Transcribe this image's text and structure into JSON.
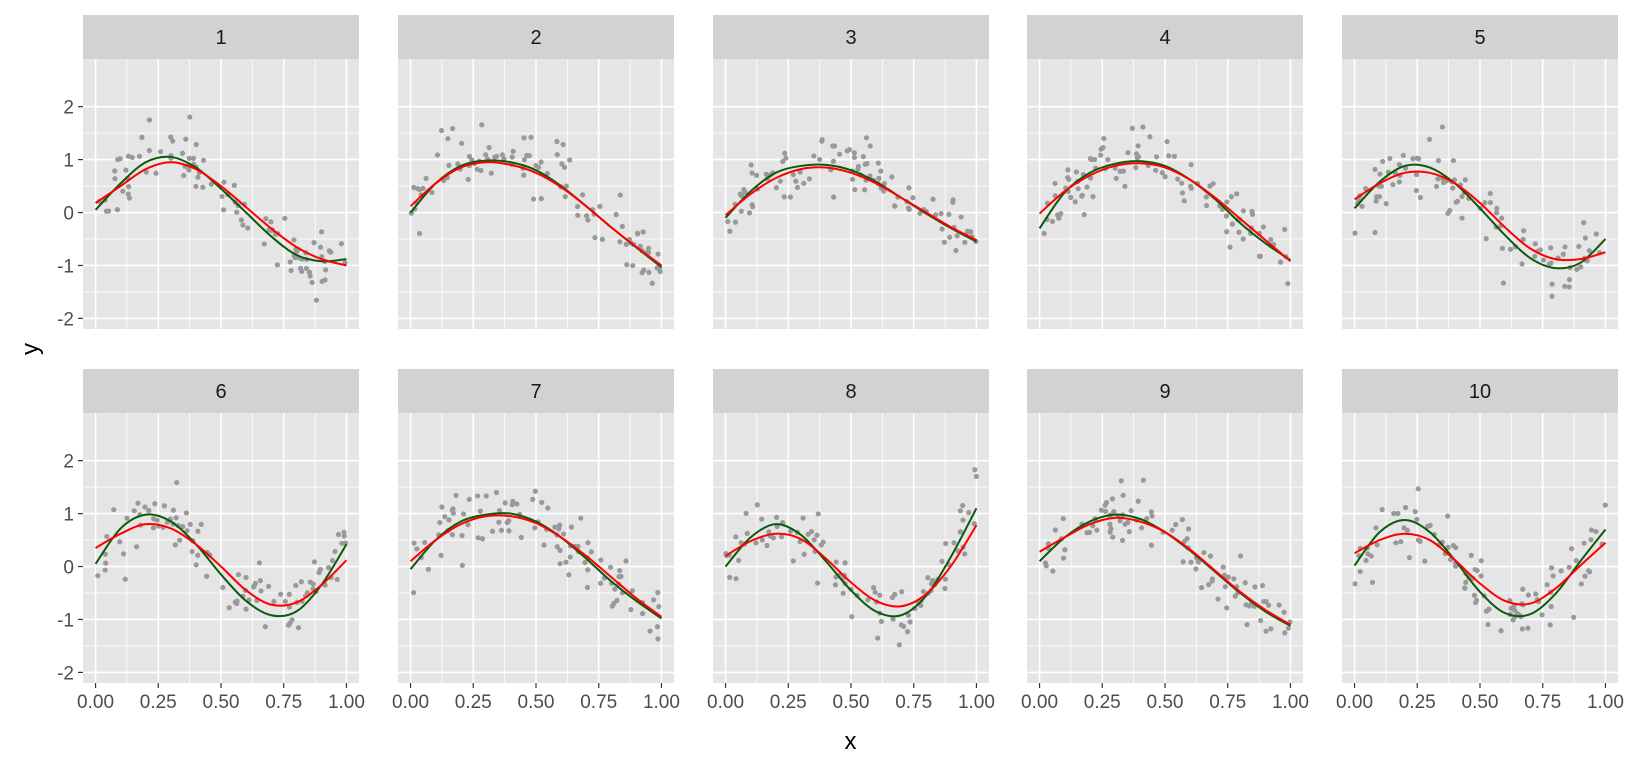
{
  "chart_data": {
    "type": "scatter",
    "layout": "facet-grid",
    "facet_rows": 2,
    "facet_cols": 5,
    "xlabel": "x",
    "ylabel": "y",
    "xlim": [
      -0.05,
      1.05
    ],
    "ylim": [
      -2.2,
      2.9
    ],
    "x_ticks": [
      0,
      0.25,
      0.5,
      0.75,
      1
    ],
    "x_tick_labels": [
      "0.00",
      "0.25",
      "0.50",
      "0.75",
      "1.00"
    ],
    "y_ticks": [
      -2,
      -1,
      0,
      1,
      2
    ],
    "y_tick_labels": [
      "-2",
      "-1",
      "0",
      "1",
      "2"
    ],
    "grid": true,
    "legend": "none",
    "colors": {
      "panel_background": "#e5e5e5",
      "strip_background": "#d2d2d2",
      "gridline": "#ffffff",
      "points": "#999999",
      "true_curve": "#0b5a0b",
      "fitted_curve": "#ff0000"
    },
    "n_points_per_panel": 100,
    "series": [
      {
        "role": "points",
        "color": "#999999"
      },
      {
        "role": "true_curve",
        "color": "#0b5a0b"
      },
      {
        "role": "fitted_curve",
        "color": "#ff0000"
      }
    ],
    "panels": [
      {
        "label": "1",
        "true_curve": [
          [
            0,
            0.05
          ],
          [
            0.1,
            0.55
          ],
          [
            0.2,
            0.95
          ],
          [
            0.3,
            1.05
          ],
          [
            0.4,
            0.85
          ],
          [
            0.5,
            0.45
          ],
          [
            0.6,
            0.0
          ],
          [
            0.7,
            -0.45
          ],
          [
            0.8,
            -0.8
          ],
          [
            0.9,
            -0.92
          ],
          [
            1,
            -0.88
          ]
        ],
        "fitted_curve": [
          [
            0,
            0.18
          ],
          [
            0.1,
            0.5
          ],
          [
            0.2,
            0.82
          ],
          [
            0.3,
            0.95
          ],
          [
            0.4,
            0.82
          ],
          [
            0.5,
            0.5
          ],
          [
            0.6,
            0.1
          ],
          [
            0.7,
            -0.3
          ],
          [
            0.8,
            -0.65
          ],
          [
            0.9,
            -0.88
          ],
          [
            1,
            -1.0
          ]
        ]
      },
      {
        "label": "2",
        "true_curve": [
          [
            0,
            0.0
          ],
          [
            0.1,
            0.55
          ],
          [
            0.2,
            0.88
          ],
          [
            0.3,
            0.98
          ],
          [
            0.4,
            0.95
          ],
          [
            0.5,
            0.8
          ],
          [
            0.6,
            0.5
          ],
          [
            0.7,
            0.12
          ],
          [
            0.8,
            -0.28
          ],
          [
            0.9,
            -0.66
          ],
          [
            1,
            -1.03
          ]
        ],
        "fitted_curve": [
          [
            0,
            0.12
          ],
          [
            0.1,
            0.55
          ],
          [
            0.2,
            0.85
          ],
          [
            0.3,
            0.95
          ],
          [
            0.4,
            0.9
          ],
          [
            0.5,
            0.75
          ],
          [
            0.6,
            0.48
          ],
          [
            0.7,
            0.12
          ],
          [
            0.8,
            -0.28
          ],
          [
            0.9,
            -0.65
          ],
          [
            1,
            -1.0
          ]
        ]
      },
      {
        "label": "3",
        "true_curve": [
          [
            0,
            -0.1
          ],
          [
            0.1,
            0.4
          ],
          [
            0.2,
            0.75
          ],
          [
            0.3,
            0.88
          ],
          [
            0.4,
            0.9
          ],
          [
            0.5,
            0.8
          ],
          [
            0.6,
            0.58
          ],
          [
            0.7,
            0.28
          ],
          [
            0.8,
            -0.02
          ],
          [
            0.9,
            -0.3
          ],
          [
            1,
            -0.55
          ]
        ],
        "fitted_curve": [
          [
            0,
            -0.05
          ],
          [
            0.1,
            0.35
          ],
          [
            0.2,
            0.65
          ],
          [
            0.3,
            0.82
          ],
          [
            0.4,
            0.85
          ],
          [
            0.5,
            0.75
          ],
          [
            0.6,
            0.55
          ],
          [
            0.7,
            0.28
          ],
          [
            0.8,
            0.0
          ],
          [
            0.9,
            -0.28
          ],
          [
            1,
            -0.52
          ]
        ]
      },
      {
        "label": "4",
        "true_curve": [
          [
            0,
            -0.3
          ],
          [
            0.1,
            0.38
          ],
          [
            0.2,
            0.75
          ],
          [
            0.3,
            0.92
          ],
          [
            0.4,
            0.97
          ],
          [
            0.5,
            0.88
          ],
          [
            0.6,
            0.62
          ],
          [
            0.7,
            0.25
          ],
          [
            0.8,
            -0.2
          ],
          [
            0.9,
            -0.58
          ],
          [
            1,
            -0.9
          ]
        ],
        "fitted_curve": [
          [
            0,
            -0.02
          ],
          [
            0.1,
            0.4
          ],
          [
            0.2,
            0.7
          ],
          [
            0.3,
            0.88
          ],
          [
            0.4,
            0.93
          ],
          [
            0.5,
            0.85
          ],
          [
            0.6,
            0.62
          ],
          [
            0.7,
            0.28
          ],
          [
            0.8,
            -0.12
          ],
          [
            0.9,
            -0.52
          ],
          [
            1,
            -0.92
          ]
        ]
      },
      {
        "label": "5",
        "true_curve": [
          [
            0,
            0.08
          ],
          [
            0.1,
            0.58
          ],
          [
            0.2,
            0.88
          ],
          [
            0.3,
            0.85
          ],
          [
            0.4,
            0.55
          ],
          [
            0.5,
            0.08
          ],
          [
            0.6,
            -0.43
          ],
          [
            0.7,
            -0.86
          ],
          [
            0.8,
            -1.05
          ],
          [
            0.9,
            -0.95
          ],
          [
            1,
            -0.5
          ]
        ],
        "fitted_curve": [
          [
            0,
            0.25
          ],
          [
            0.1,
            0.55
          ],
          [
            0.2,
            0.75
          ],
          [
            0.3,
            0.75
          ],
          [
            0.4,
            0.55
          ],
          [
            0.5,
            0.18
          ],
          [
            0.6,
            -0.28
          ],
          [
            0.7,
            -0.68
          ],
          [
            0.8,
            -0.88
          ],
          [
            0.9,
            -0.88
          ],
          [
            1,
            -0.75
          ]
        ]
      },
      {
        "label": "6",
        "true_curve": [
          [
            0,
            0.05
          ],
          [
            0.1,
            0.72
          ],
          [
            0.2,
            0.98
          ],
          [
            0.3,
            0.85
          ],
          [
            0.4,
            0.42
          ],
          [
            0.5,
            -0.15
          ],
          [
            0.6,
            -0.65
          ],
          [
            0.7,
            -0.92
          ],
          [
            0.8,
            -0.85
          ],
          [
            0.9,
            -0.35
          ],
          [
            1,
            0.42
          ]
        ],
        "fitted_curve": [
          [
            0,
            0.35
          ],
          [
            0.1,
            0.62
          ],
          [
            0.2,
            0.8
          ],
          [
            0.3,
            0.72
          ],
          [
            0.4,
            0.42
          ],
          [
            0.5,
            0.0
          ],
          [
            0.6,
            -0.45
          ],
          [
            0.7,
            -0.72
          ],
          [
            0.8,
            -0.68
          ],
          [
            0.9,
            -0.35
          ],
          [
            1,
            0.12
          ]
        ]
      },
      {
        "label": "7",
        "true_curve": [
          [
            0,
            -0.05
          ],
          [
            0.1,
            0.5
          ],
          [
            0.2,
            0.85
          ],
          [
            0.3,
            0.98
          ],
          [
            0.4,
            1.0
          ],
          [
            0.5,
            0.85
          ],
          [
            0.6,
            0.55
          ],
          [
            0.7,
            0.15
          ],
          [
            0.8,
            -0.28
          ],
          [
            0.9,
            -0.65
          ],
          [
            1,
            -0.98
          ]
        ],
        "fitted_curve": [
          [
            0,
            0.1
          ],
          [
            0.1,
            0.5
          ],
          [
            0.2,
            0.8
          ],
          [
            0.3,
            0.95
          ],
          [
            0.4,
            0.95
          ],
          [
            0.5,
            0.82
          ],
          [
            0.6,
            0.55
          ],
          [
            0.7,
            0.2
          ],
          [
            0.8,
            -0.2
          ],
          [
            0.9,
            -0.6
          ],
          [
            1,
            -0.95
          ]
        ]
      },
      {
        "label": "8",
        "true_curve": [
          [
            0,
            0.0
          ],
          [
            0.1,
            0.55
          ],
          [
            0.2,
            0.8
          ],
          [
            0.3,
            0.6
          ],
          [
            0.4,
            0.1
          ],
          [
            0.5,
            -0.45
          ],
          [
            0.6,
            -0.85
          ],
          [
            0.7,
            -0.92
          ],
          [
            0.8,
            -0.55
          ],
          [
            0.9,
            0.2
          ],
          [
            1,
            1.1
          ]
        ],
        "fitted_curve": [
          [
            0,
            0.2
          ],
          [
            0.1,
            0.48
          ],
          [
            0.2,
            0.62
          ],
          [
            0.3,
            0.52
          ],
          [
            0.4,
            0.15
          ],
          [
            0.5,
            -0.3
          ],
          [
            0.6,
            -0.65
          ],
          [
            0.7,
            -0.75
          ],
          [
            0.8,
            -0.52
          ],
          [
            0.9,
            0.02
          ],
          [
            1,
            0.78
          ]
        ]
      },
      {
        "label": "9",
        "true_curve": [
          [
            0,
            0.1
          ],
          [
            0.1,
            0.55
          ],
          [
            0.2,
            0.85
          ],
          [
            0.3,
            0.98
          ],
          [
            0.4,
            0.9
          ],
          [
            0.5,
            0.65
          ],
          [
            0.6,
            0.3
          ],
          [
            0.7,
            -0.1
          ],
          [
            0.8,
            -0.5
          ],
          [
            0.9,
            -0.85
          ],
          [
            1,
            -1.12
          ]
        ],
        "fitted_curve": [
          [
            0,
            0.28
          ],
          [
            0.1,
            0.55
          ],
          [
            0.2,
            0.8
          ],
          [
            0.3,
            0.92
          ],
          [
            0.4,
            0.85
          ],
          [
            0.5,
            0.65
          ],
          [
            0.6,
            0.32
          ],
          [
            0.7,
            -0.08
          ],
          [
            0.8,
            -0.48
          ],
          [
            0.9,
            -0.82
          ],
          [
            1,
            -1.1
          ]
        ]
      },
      {
        "label": "10",
        "true_curve": [
          [
            0,
            0.02
          ],
          [
            0.1,
            0.65
          ],
          [
            0.2,
            0.88
          ],
          [
            0.3,
            0.65
          ],
          [
            0.4,
            0.12
          ],
          [
            0.5,
            -0.48
          ],
          [
            0.6,
            -0.88
          ],
          [
            0.7,
            -0.9
          ],
          [
            0.8,
            -0.52
          ],
          [
            0.9,
            0.1
          ],
          [
            1,
            0.7
          ]
        ],
        "fitted_curve": [
          [
            0,
            0.25
          ],
          [
            0.1,
            0.5
          ],
          [
            0.2,
            0.62
          ],
          [
            0.3,
            0.5
          ],
          [
            0.4,
            0.12
          ],
          [
            0.5,
            -0.32
          ],
          [
            0.6,
            -0.65
          ],
          [
            0.7,
            -0.7
          ],
          [
            0.8,
            -0.42
          ],
          [
            0.9,
            0.02
          ],
          [
            1,
            0.45
          ]
        ]
      }
    ]
  }
}
